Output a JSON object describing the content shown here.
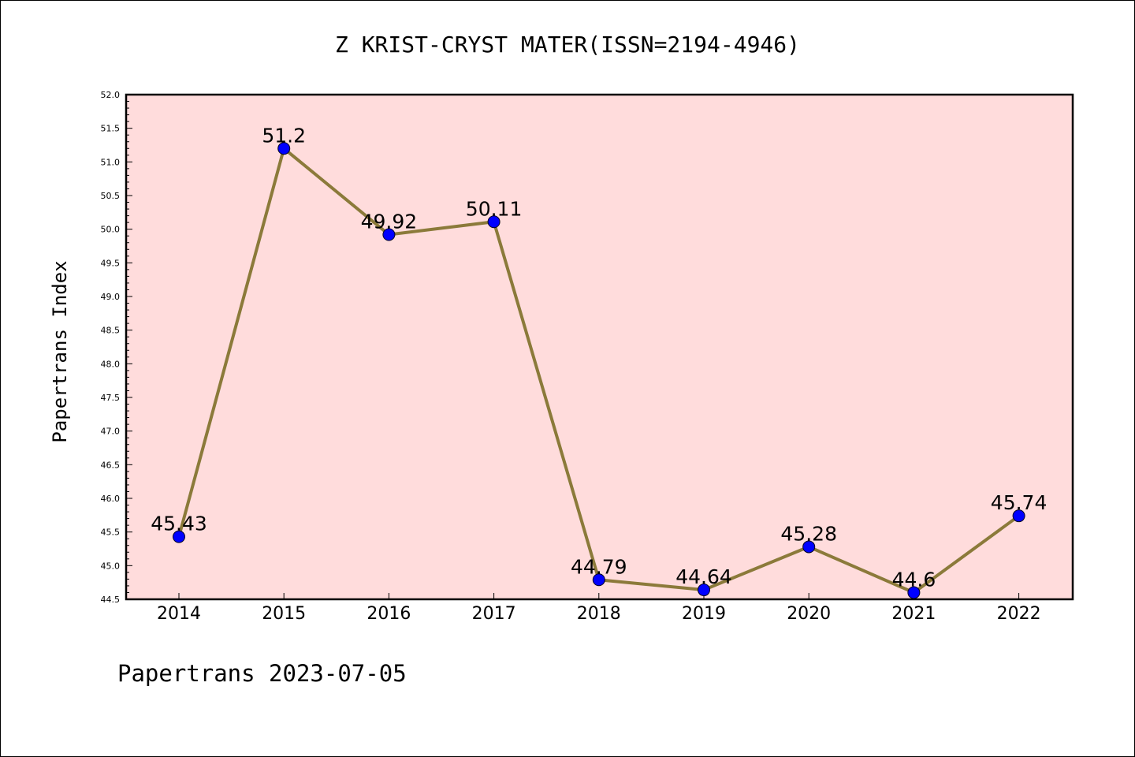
{
  "chart_data": {
    "type": "line",
    "title": "Z KRIST-CRYST MATER(ISSN=2194-4946)",
    "xlabel": "",
    "ylabel": "Papertrans Index",
    "categories": [
      "2014",
      "2015",
      "2016",
      "2017",
      "2018",
      "2019",
      "2020",
      "2021",
      "2022"
    ],
    "series": [
      {
        "values": [
          45.43,
          51.2,
          49.92,
          50.11,
          44.79,
          44.64,
          45.28,
          44.6,
          45.74
        ],
        "data_labels": [
          "45.43",
          "51.2",
          "49.92",
          "50.11",
          "44.79",
          "44.64",
          "45.28",
          "44.6",
          "45.74"
        ],
        "line_color": "#8b7a3a",
        "marker_color": "#0000ff"
      }
    ],
    "ylim": [
      44.5,
      52.0
    ],
    "yticks": [
      "44.5",
      "45.0",
      "45.5",
      "46.0",
      "46.5",
      "47.0",
      "47.5",
      "48.0",
      "48.5",
      "49.0",
      "49.5",
      "50.0",
      "50.5",
      "51.0",
      "51.5",
      "52.0"
    ],
    "grid": false,
    "plot_background": "#ffdcdc"
  },
  "footer": "Papertrans 2023-07-05"
}
